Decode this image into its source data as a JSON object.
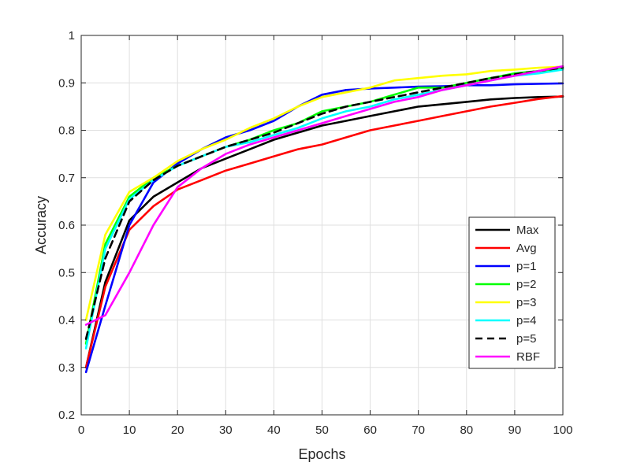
{
  "chart_data": {
    "type": "line",
    "title": "",
    "xlabel": "Epochs",
    "ylabel": "Accuracy",
    "xlim": [
      0,
      100
    ],
    "ylim": [
      0.2,
      1.0
    ],
    "xticks": [
      0,
      10,
      20,
      30,
      40,
      50,
      60,
      70,
      80,
      90,
      100
    ],
    "yticks": [
      0.2,
      0.3,
      0.4,
      0.5,
      0.6,
      0.7,
      0.8,
      0.9,
      1.0
    ],
    "xtick_labels": [
      "0",
      "10",
      "20",
      "30",
      "40",
      "50",
      "60",
      "70",
      "80",
      "90",
      "100"
    ],
    "ytick_labels": [
      "0.2",
      "0.3",
      "0.4",
      "0.5",
      "0.6",
      "0.7",
      "0.8",
      "0.9",
      "1"
    ],
    "grid": true,
    "legend_position": "right",
    "x": [
      1,
      5,
      10,
      15,
      20,
      25,
      30,
      35,
      40,
      45,
      50,
      55,
      60,
      65,
      70,
      75,
      80,
      85,
      90,
      95,
      100
    ],
    "series": [
      {
        "name": "Max",
        "color": "#000000",
        "dash": "solid",
        "values": [
          0.3,
          0.48,
          0.61,
          0.66,
          0.69,
          0.72,
          0.74,
          0.76,
          0.78,
          0.795,
          0.81,
          0.82,
          0.83,
          0.84,
          0.85,
          0.855,
          0.86,
          0.865,
          0.868,
          0.87,
          0.871
        ]
      },
      {
        "name": "Avg",
        "color": "#ff0000",
        "dash": "solid",
        "values": [
          0.3,
          0.47,
          0.59,
          0.64,
          0.675,
          0.695,
          0.715,
          0.73,
          0.745,
          0.76,
          0.77,
          0.785,
          0.8,
          0.81,
          0.82,
          0.83,
          0.84,
          0.85,
          0.858,
          0.866,
          0.872
        ]
      },
      {
        "name": "p=1",
        "color": "#0000ff",
        "dash": "solid",
        "values": [
          0.29,
          0.43,
          0.6,
          0.69,
          0.73,
          0.76,
          0.785,
          0.8,
          0.82,
          0.85,
          0.875,
          0.885,
          0.888,
          0.89,
          0.892,
          0.893,
          0.895,
          0.895,
          0.897,
          0.898,
          0.899
        ]
      },
      {
        "name": "p=2",
        "color": "#00ff00",
        "dash": "solid",
        "values": [
          0.35,
          0.56,
          0.66,
          0.7,
          0.725,
          0.745,
          0.765,
          0.78,
          0.8,
          0.815,
          0.84,
          0.85,
          0.86,
          0.875,
          0.89,
          0.89,
          0.9,
          0.91,
          0.92,
          0.925,
          0.93
        ]
      },
      {
        "name": "p=3",
        "color": "#ffff00",
        "dash": "solid",
        "values": [
          0.4,
          0.58,
          0.67,
          0.7,
          0.735,
          0.76,
          0.78,
          0.805,
          0.825,
          0.85,
          0.87,
          0.88,
          0.89,
          0.905,
          0.91,
          0.915,
          0.918,
          0.925,
          0.928,
          0.932,
          0.934
        ]
      },
      {
        "name": "p=4",
        "color": "#00ffff",
        "dash": "solid",
        "values": [
          0.34,
          0.55,
          0.655,
          0.695,
          0.725,
          0.745,
          0.765,
          0.775,
          0.79,
          0.805,
          0.825,
          0.84,
          0.85,
          0.865,
          0.875,
          0.885,
          0.895,
          0.905,
          0.915,
          0.92,
          0.928
        ]
      },
      {
        "name": "p=5",
        "color": "#000000",
        "dash": "dashed",
        "values": [
          0.36,
          0.53,
          0.65,
          0.695,
          0.725,
          0.745,
          0.765,
          0.78,
          0.795,
          0.815,
          0.835,
          0.85,
          0.86,
          0.87,
          0.88,
          0.89,
          0.9,
          0.91,
          0.918,
          0.925,
          0.932
        ]
      },
      {
        "name": "RBF",
        "color": "#ff00ff",
        "dash": "solid",
        "values": [
          0.39,
          0.41,
          0.5,
          0.6,
          0.68,
          0.72,
          0.75,
          0.77,
          0.785,
          0.8,
          0.815,
          0.83,
          0.845,
          0.86,
          0.87,
          0.885,
          0.895,
          0.905,
          0.915,
          0.925,
          0.935
        ]
      }
    ]
  }
}
